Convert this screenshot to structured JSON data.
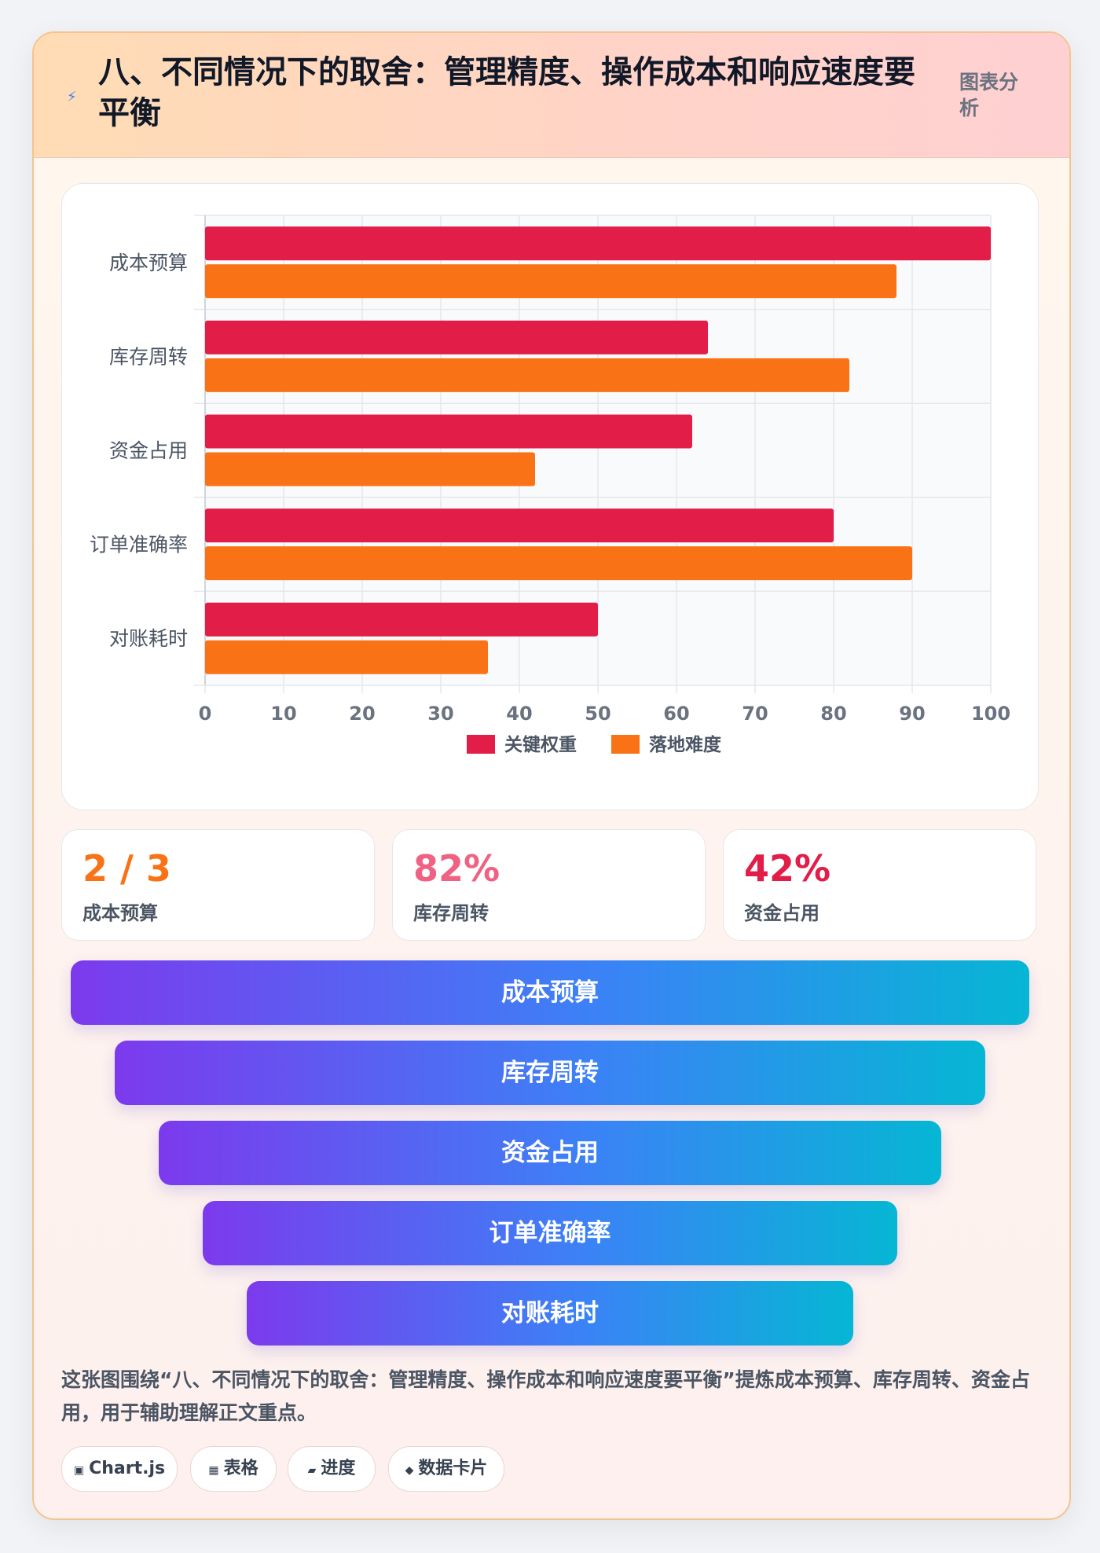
{
  "header": {
    "title": "八、不同情况下的取舍：管理精度、操作成本和响应速度要平衡",
    "tag": "图表分析",
    "icon": "lightning-icon"
  },
  "chart_data": {
    "type": "bar",
    "orientation": "horizontal",
    "categories": [
      "成本预算",
      "库存周转",
      "资金占用",
      "订单准确率",
      "对账耗时"
    ],
    "series": [
      {
        "name": "关键权重",
        "color": "#e11d48",
        "values": [
          100,
          64,
          62,
          80,
          50
        ]
      },
      {
        "name": "落地难度",
        "color": "#f97316",
        "values": [
          88,
          82,
          42,
          90,
          36
        ]
      }
    ],
    "xlim": [
      0,
      100
    ],
    "xticks": [
      0,
      10,
      20,
      30,
      40,
      50,
      60,
      70,
      80,
      90,
      100
    ],
    "grid": true,
    "legend": "bottom"
  },
  "stats": [
    {
      "value": "2 / 3",
      "label": "成本预算",
      "color": "#f97316"
    },
    {
      "value": "82%",
      "label": "库存周转",
      "color": "#f06283"
    },
    {
      "value": "42%",
      "label": "资金占用",
      "color": "#e11d48"
    }
  ],
  "funnel": [
    "成本预算",
    "库存周转",
    "资金占用",
    "订单准确率",
    "对账耗时"
  ],
  "description": "这张图围绕“八、不同情况下的取舍：管理精度、操作成本和响应速度要平衡”提炼成本预算、库存周转、资金占用，用于辅助理解正文重点。",
  "chips": [
    {
      "icon": "▣",
      "label": "Chart.js"
    },
    {
      "icon": "▦",
      "label": "表格"
    },
    {
      "icon": "▰",
      "label": "进度"
    },
    {
      "icon": "◆",
      "label": "数据卡片"
    }
  ]
}
